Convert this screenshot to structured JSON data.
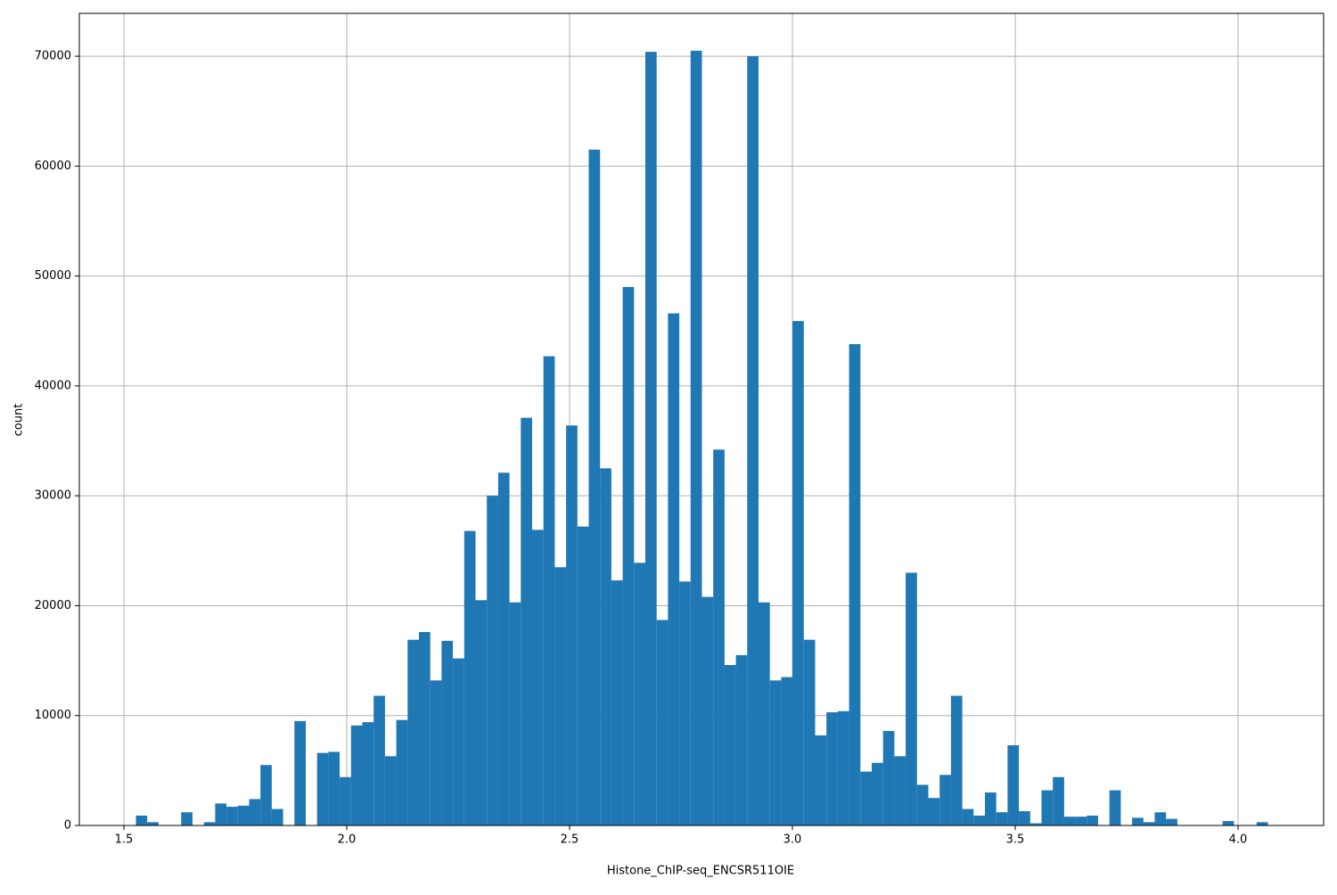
{
  "chart_data": {
    "type": "histogram",
    "xlabel": "Histone_ChIP-seq_ENCSR511OIE",
    "ylabel": "count",
    "color": "#1f77b4",
    "grid": true,
    "bins": [
      1.527,
      1.5524,
      1.5778,
      1.6032,
      1.6286,
      1.654,
      1.6794,
      1.7048,
      1.7302,
      1.7556,
      1.781,
      1.8064,
      1.8318,
      1.8572,
      1.8826,
      1.908,
      1.9334,
      1.9588,
      1.9842,
      2.0096,
      2.035,
      2.0604,
      2.0858,
      2.1112,
      2.1366,
      2.162,
      2.1874,
      2.2128,
      2.2382,
      2.2636,
      2.289,
      2.3144,
      2.3398,
      2.3652,
      2.3906,
      2.416,
      2.4414,
      2.4668,
      2.4922,
      2.5176,
      2.543,
      2.5684,
      2.5938,
      2.6192,
      2.6446,
      2.67,
      2.6954,
      2.7208,
      2.7462,
      2.7716,
      2.797,
      2.8224,
      2.8478,
      2.8732,
      2.8986,
      2.924,
      2.9494,
      2.9748,
      3.0002,
      3.0256,
      3.051,
      3.0764,
      3.1018,
      3.1272,
      3.1526,
      3.178,
      3.2034,
      3.2288,
      3.2542,
      3.2796,
      3.305,
      3.3304,
      3.3558,
      3.3812,
      3.4066,
      3.432,
      3.4574,
      3.4828,
      3.5082,
      3.5336,
      3.559,
      3.5844,
      3.6098,
      3.6352,
      3.6606,
      3.686,
      3.7114,
      3.7368,
      3.7622,
      3.7876,
      3.813,
      3.8384,
      3.8638,
      3.8892,
      3.9146,
      3.94,
      3.9654,
      3.9908,
      4.0162,
      4.0416,
      4.067
    ],
    "counts": [
      900,
      300,
      0,
      0,
      1200,
      0,
      300,
      2000,
      1700,
      1800,
      2400,
      5500,
      1500,
      0,
      9500,
      0,
      6600,
      6700,
      4400,
      9100,
      9400,
      11800,
      6300,
      9600,
      16900,
      17600,
      13200,
      16800,
      15200,
      26800,
      20500,
      30000,
      32100,
      20300,
      37100,
      26900,
      42700,
      23500,
      36400,
      27200,
      61500,
      32500,
      22300,
      49000,
      23900,
      70400,
      18700,
      46600,
      22200,
      70500,
      20800,
      34200,
      14600,
      15500,
      70000,
      20300,
      13200,
      13500,
      45900,
      16900,
      8200,
      10300,
      10400,
      43800,
      4900,
      5700,
      8600,
      6300,
      23000,
      3700,
      2500,
      4600,
      11800,
      1500,
      900,
      3000,
      1200,
      7300,
      1300,
      200,
      3200,
      4400,
      800,
      800,
      900,
      0,
      3200,
      0,
      700,
      300,
      1200,
      600,
      0,
      0,
      0,
      0,
      400,
      0,
      0,
      300
    ],
    "xlim": [
      1.4,
      4.192
    ],
    "xticks": [
      1.5,
      {
        "value": 2,
        "label": "2.0"
      },
      2.5,
      {
        "value": 3,
        "label": "3.0"
      },
      3.5,
      {
        "value": 4,
        "label": "4.0"
      }
    ],
    "ylim": [
      0,
      73900
    ],
    "yticks": [
      0,
      10000,
      20000,
      30000,
      40000,
      50000,
      60000,
      70000
    ]
  }
}
